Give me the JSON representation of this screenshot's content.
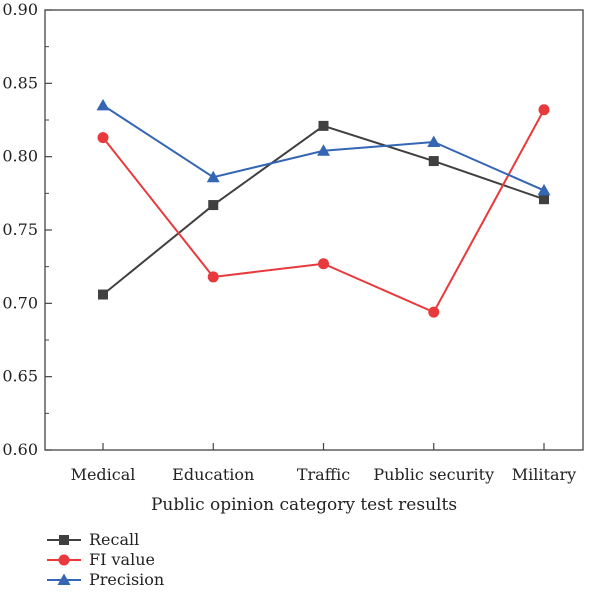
{
  "chart_data": {
    "type": "line",
    "categories": [
      "Medical",
      "Education",
      "Traffic",
      "Public security",
      "Military"
    ],
    "xlabel": "Public opinion category test results",
    "ylabel": "",
    "ylim": [
      0.6,
      0.9
    ],
    "yticks": [
      "0.60",
      "0.65",
      "0.70",
      "0.75",
      "0.80",
      "0.85",
      "0.90"
    ],
    "grid": false,
    "legend_position": "bottom-left",
    "series": [
      {
        "name": "Recall",
        "marker": "square",
        "color": "#404040",
        "values": [
          0.706,
          0.767,
          0.821,
          0.797,
          0.771
        ]
      },
      {
        "name": "FI value",
        "marker": "circle",
        "color": "#e8393c",
        "values": [
          0.813,
          0.718,
          0.727,
          0.694,
          0.832
        ]
      },
      {
        "name": "Precision",
        "marker": "triangle",
        "color": "#3466b4",
        "values": [
          0.835,
          0.786,
          0.804,
          0.81,
          0.777
        ]
      }
    ]
  }
}
